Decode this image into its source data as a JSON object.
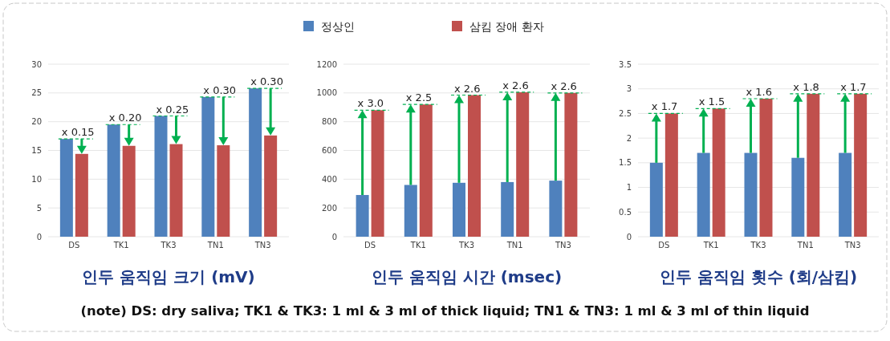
{
  "chart_data": [
    {
      "type": "bar",
      "title": "인두 움직임 크기 (mV)",
      "categories": [
        "DS",
        "TK1",
        "TK3",
        "TN1",
        "TN3"
      ],
      "series": [
        {
          "name": "정상인",
          "color": "#4f81bd",
          "values": [
            17,
            19.5,
            21,
            24.3,
            25.8
          ]
        },
        {
          "name": "삼킴 장애 환자",
          "color": "#c0504d",
          "values": [
            14.4,
            15.8,
            16.1,
            15.9,
            17.6
          ]
        }
      ],
      "ylim": [
        0,
        30
      ],
      "yticks": [
        0,
        5,
        10,
        15,
        20,
        25,
        30
      ],
      "grid": "y",
      "legend": "top",
      "annotations": [
        {
          "text": "x 0.15",
          "x": "DS",
          "y": 17
        },
        {
          "text": "x 0.20",
          "x": "TK1",
          "y": 19.5
        },
        {
          "text": "x 0.25",
          "x": "TK3",
          "y": 21
        },
        {
          "text": "x 0.30",
          "x": "TN1",
          "y": 24.3
        },
        {
          "text": "x 0.30",
          "x": "TN3",
          "y": 25.8
        },
        "(note) DS: dry saliva; TK1 & TK3: 1 ml & 3 ml of thick liquid; TN1 & TN3: 1 ml & 3 ml of thin liquid"
      ]
    },
    {
      "type": "bar",
      "title": "인두 움직임 시간 (msec)",
      "categories": [
        "DS",
        "TK1",
        "TK3",
        "TN1",
        "TN3"
      ],
      "series": [
        {
          "color": "#4f81bd",
          "values": [
            290,
            360,
            375,
            380,
            390
          ]
        },
        {
          "color": "#c0504d",
          "values": [
            880,
            920,
            985,
            1005,
            1000
          ]
        }
      ],
      "ylim": [
        0,
        1200
      ],
      "yticks": [
        0,
        200,
        400,
        600,
        800,
        1000,
        1200
      ],
      "grid": "y",
      "annotations": [
        {
          "text": "x 3.0",
          "x": "DS",
          "y": 880
        },
        {
          "text": "x 2.5",
          "x": "TK1",
          "y": 920
        },
        {
          "text": "x 2.6",
          "x": "TK3",
          "y": 985
        },
        {
          "text": "x 2.6",
          "x": "TN1",
          "y": 1005
        },
        {
          "text": "x 2.6",
          "x": "TN3",
          "y": 1000
        }
      ]
    },
    {
      "type": "bar",
      "title": "인두 움직임 횟수 (회/삼킴)",
      "categories": [
        "DS",
        "TK1",
        "TK3",
        "TN1",
        "TN3"
      ],
      "series": [
        {
          "color": "#4f81bd",
          "values": [
            1.5,
            1.7,
            1.7,
            1.6,
            1.7
          ]
        },
        {
          "color": "#c0504d",
          "values": [
            2.5,
            2.6,
            2.8,
            2.9,
            2.9
          ]
        }
      ],
      "ylim": [
        0,
        3.5
      ],
      "yticks": [
        0,
        0.5,
        1,
        1.5,
        2,
        2.5,
        3,
        3.5
      ],
      "grid": "y",
      "annotations": [
        {
          "text": "x 1.7",
          "x": "DS",
          "y": 2.5
        },
        {
          "text": "x 1.5",
          "x": "TK1",
          "y": 2.6
        },
        {
          "text": "x 1.6",
          "x": "TK3",
          "y": 2.8
        },
        {
          "text": "x 1.8",
          "x": "TN1",
          "y": 2.9
        },
        {
          "text": "x 1.7",
          "x": "TN3",
          "y": 2.9
        }
      ]
    }
  ]
}
